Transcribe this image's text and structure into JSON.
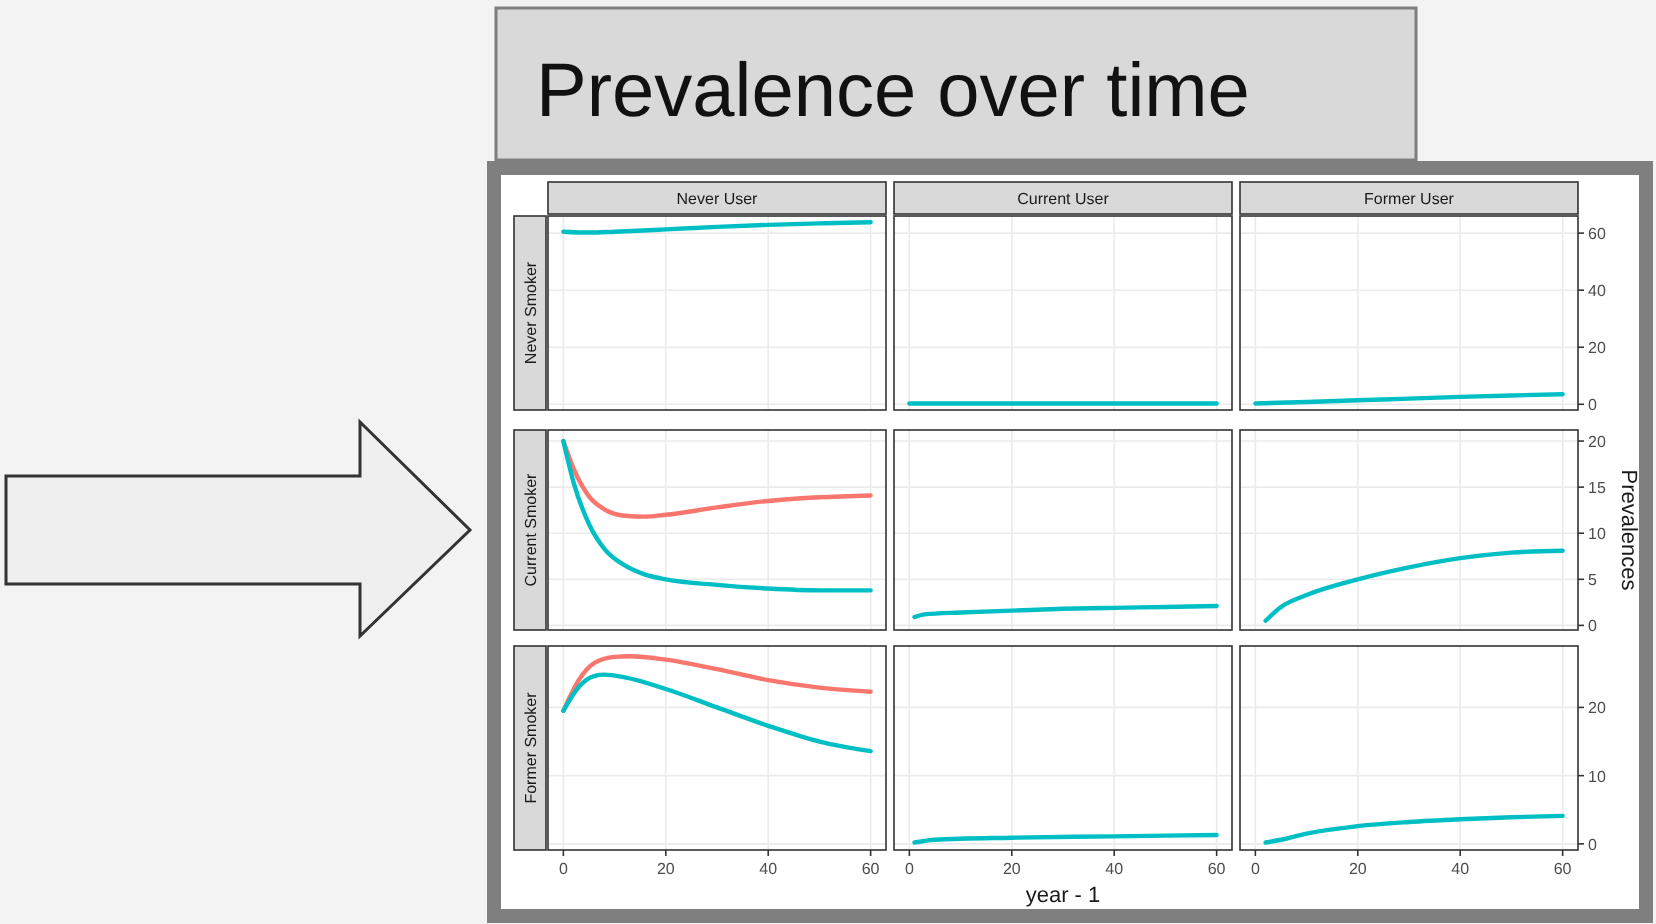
{
  "chart_data": [
    {
      "type": "other",
      "title": "Prevalence over time"
    },
    {
      "type": "line",
      "title": "Never User",
      "ylabel": "Never Smoker",
      "xlim": [
        -3,
        63
      ],
      "xticks": [
        0,
        20,
        40,
        60
      ],
      "ylim": [
        -2,
        66
      ],
      "yticks": [
        0,
        20,
        40,
        60
      ],
      "grid": true,
      "tick_labels": false,
      "series": [
        {
          "color": "#00bfc4",
          "x": [
            0,
            5,
            10,
            20,
            30,
            40,
            50,
            60
          ],
          "values": [
            60.5,
            60.2,
            60.5,
            61.3,
            62.2,
            62.9,
            63.4,
            63.8
          ]
        }
      ]
    },
    {
      "type": "line",
      "title": "Current User",
      "xlim": [
        -3,
        63
      ],
      "xticks": [
        0,
        20,
        40,
        60
      ],
      "ylim": [
        -2,
        66
      ],
      "yticks": [
        0,
        20,
        40,
        60
      ],
      "grid": true,
      "tick_labels": false,
      "series": [
        {
          "color": "#00bfc4",
          "x": [
            0,
            20,
            40,
            60
          ],
          "values": [
            0.3,
            0.3,
            0.3,
            0.3
          ]
        }
      ]
    },
    {
      "type": "line",
      "title": "Former User",
      "xlim": [
        -3,
        63
      ],
      "xticks": [
        0,
        20,
        40,
        60
      ],
      "ylim": [
        -2,
        66
      ],
      "yticks": [
        0,
        20,
        40,
        60
      ],
      "grid": true,
      "tick_labels": "y",
      "series": [
        {
          "color": "#00bfc4",
          "x": [
            0,
            10,
            20,
            30,
            40,
            50,
            60
          ],
          "values": [
            0.3,
            0.8,
            1.4,
            2,
            2.6,
            3.1,
            3.5
          ]
        }
      ]
    },
    {
      "type": "line",
      "ylabel": "Current Smoker",
      "xlim": [
        -3,
        63
      ],
      "xticks": [
        0,
        20,
        40,
        60
      ],
      "ylim": [
        -0.5,
        21.2
      ],
      "yticks": [
        0,
        5,
        10,
        15,
        20
      ],
      "grid": true,
      "tick_labels": false,
      "series": [
        {
          "color": "#f8766d",
          "x": [
            0,
            2,
            5,
            8,
            12,
            16,
            20,
            30,
            40,
            50,
            60
          ],
          "values": [
            20,
            17,
            14,
            12.6,
            11.9,
            11.8,
            12,
            12.8,
            13.5,
            13.9,
            14.1
          ]
        },
        {
          "color": "#00bfc4",
          "x": [
            0,
            2,
            5,
            8,
            12,
            16,
            20,
            30,
            40,
            50,
            60
          ],
          "values": [
            20,
            15.5,
            11,
            8.3,
            6.5,
            5.5,
            5,
            4.4,
            4,
            3.8,
            3.8
          ]
        }
      ]
    },
    {
      "type": "line",
      "xlim": [
        -3,
        63
      ],
      "xticks": [
        0,
        20,
        40,
        60
      ],
      "ylim": [
        -0.5,
        21.2
      ],
      "yticks": [
        0,
        5,
        10,
        15,
        20
      ],
      "grid": true,
      "tick_labels": false,
      "series": [
        {
          "color": "#00bfc4",
          "x": [
            1,
            3,
            10,
            20,
            30,
            40,
            50,
            60
          ],
          "values": [
            0.9,
            1.2,
            1.4,
            1.6,
            1.8,
            1.9,
            2,
            2.1
          ]
        }
      ]
    },
    {
      "type": "line",
      "ylabel": "Prevalences",
      "xlim": [
        -3,
        63
      ],
      "xticks": [
        0,
        20,
        40,
        60
      ],
      "ylim": [
        -0.5,
        21.2
      ],
      "yticks": [
        0,
        5,
        10,
        15,
        20
      ],
      "grid": true,
      "tick_labels": "y",
      "series": [
        {
          "color": "#00bfc4",
          "x": [
            2,
            5,
            10,
            20,
            30,
            40,
            50,
            60
          ],
          "values": [
            0.5,
            2,
            3.3,
            5,
            6.3,
            7.3,
            7.9,
            8.1
          ]
        }
      ]
    },
    {
      "type": "line",
      "ylabel": "Former Smoker",
      "xlim": [
        -3,
        63
      ],
      "xticks": [
        0,
        20,
        40,
        60
      ],
      "ylim": [
        -0.9,
        29
      ],
      "yticks": [
        0,
        10,
        20
      ],
      "grid": true,
      "tick_labels": "x",
      "series": [
        {
          "color": "#f8766d",
          "x": [
            0,
            3,
            6,
            10,
            13,
            20,
            30,
            40,
            50,
            60
          ],
          "values": [
            19.5,
            24,
            26.5,
            27.4,
            27.5,
            27,
            25.6,
            24,
            22.9,
            22.3
          ]
        },
        {
          "color": "#00bfc4",
          "x": [
            0,
            3,
            6,
            8,
            12,
            20,
            30,
            40,
            50,
            60
          ],
          "values": [
            19.5,
            23,
            24.6,
            24.8,
            24.4,
            22.7,
            20,
            17.3,
            15,
            13.6
          ]
        }
      ]
    },
    {
      "type": "line",
      "xlabel": "year - 1",
      "xlim": [
        -3,
        63
      ],
      "xticks": [
        0,
        20,
        40,
        60
      ],
      "ylim": [
        -0.9,
        29
      ],
      "yticks": [
        0,
        10,
        20
      ],
      "grid": true,
      "tick_labels": "x",
      "series": [
        {
          "color": "#00bfc4",
          "x": [
            1,
            5,
            20,
            40,
            60
          ],
          "values": [
            0.2,
            0.6,
            0.9,
            1.1,
            1.3
          ]
        }
      ]
    },
    {
      "type": "line",
      "xlim": [
        -3,
        63
      ],
      "xticks": [
        0,
        20,
        40,
        60
      ],
      "ylim": [
        -0.9,
        29
      ],
      "yticks": [
        0,
        10,
        20
      ],
      "grid": true,
      "series": [
        {
          "color": "#00bfc4",
          "x": [
            2,
            5,
            10,
            20,
            30,
            40,
            50,
            60
          ],
          "values": [
            0.2,
            0.6,
            1.5,
            2.6,
            3.2,
            3.6,
            3.9,
            4.1
          ]
        }
      ]
    }
  ]
}
